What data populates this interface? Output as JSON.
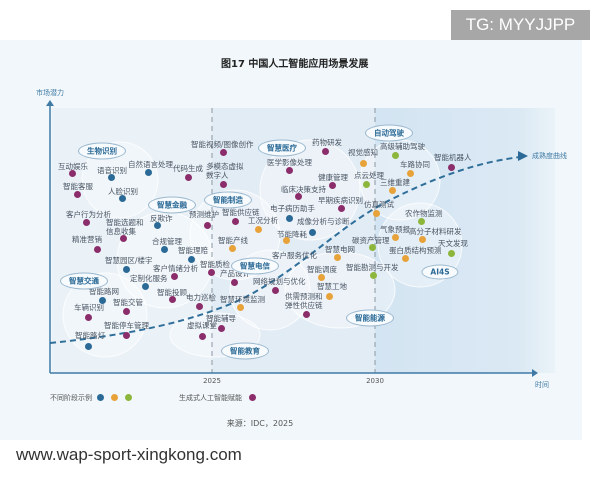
{
  "overlay_tag": "TG: MYYJJPP",
  "title": "图17 中国人工智能应用场景发展",
  "y_axis_label": "市场潜力",
  "x_axis_label": "时间",
  "x_ticks": [
    "2025",
    "2030"
  ],
  "curve_label": "成熟度曲线",
  "colors": {
    "blue": "#2b6a96",
    "orange": "#e8a23a",
    "green": "#8db63c",
    "purple": "#8b2d6a"
  },
  "clusters": [
    "生物识别",
    "智慧金融",
    "智能制造",
    "智慧医疗",
    "自动驾驶",
    "智慧交通",
    "智慧电信",
    "智能能源",
    "AI4S",
    "智能教育"
  ],
  "items": [
    {
      "label": "互动娱乐",
      "type": "purple"
    },
    {
      "label": "语音识别",
      "type": "blue"
    },
    {
      "label": "自然语言处理",
      "type": "blue"
    },
    {
      "label": "代码生成",
      "type": "purple"
    },
    {
      "label": "智能客服",
      "type": "purple"
    },
    {
      "label": "人脸识别",
      "type": "blue"
    },
    {
      "label": "智能视频/图像创作",
      "type": "purple"
    },
    {
      "label": "多模态虚拟 数字人",
      "type": "purple"
    },
    {
      "label": "药物研发",
      "type": "purple"
    },
    {
      "label": "医学影像处理",
      "type": "purple"
    },
    {
      "label": "视觉感知",
      "type": "orange"
    },
    {
      "label": "健康管理",
      "type": "purple"
    },
    {
      "label": "点云处理",
      "type": "green"
    },
    {
      "label": "临床决策支持",
      "type": "purple"
    },
    {
      "label": "早期疾病识别",
      "type": "purple"
    },
    {
      "label": "仿真测试",
      "type": "orange"
    },
    {
      "label": "智能供应链",
      "type": "purple"
    },
    {
      "label": "电子病历助手",
      "type": "blue"
    },
    {
      "label": "预测维护",
      "type": "purple"
    },
    {
      "label": "工况分析",
      "type": "orange"
    },
    {
      "label": "成像分析与诊断",
      "type": "blue"
    },
    {
      "label": "节能降耗",
      "type": "orange"
    },
    {
      "label": "智能产线",
      "type": "orange"
    },
    {
      "label": "碳资产管理",
      "type": "green"
    },
    {
      "label": "智慧电网",
      "type": "orange"
    },
    {
      "label": "客户服务优化",
      "type": "none"
    },
    {
      "label": "高级辅助驾驶",
      "type": "green"
    },
    {
      "label": "智能机器人",
      "type": "purple"
    },
    {
      "label": "车路协同",
      "type": "orange"
    },
    {
      "label": "三维重建",
      "type": "orange"
    },
    {
      "label": "农作物监测",
      "type": "green"
    },
    {
      "label": "气象预报",
      "type": "orange"
    },
    {
      "label": "高分子材料研发",
      "type": "orange"
    },
    {
      "label": "天文发现",
      "type": "green"
    },
    {
      "label": "蛋白质结构预测",
      "type": "orange"
    },
    {
      "label": "智能勘测与开发",
      "type": "green"
    },
    {
      "label": "客户行为分析",
      "type": "purple"
    },
    {
      "label": "智能选题和 信息收集",
      "type": "purple"
    },
    {
      "label": "反欺诈",
      "type": "blue"
    },
    {
      "label": "精准营销",
      "type": "purple"
    },
    {
      "label": "合规管理",
      "type": "blue"
    },
    {
      "label": "智能理赔",
      "type": "blue"
    },
    {
      "label": "智慧园区/楼宇",
      "type": "blue"
    },
    {
      "label": "客户情绪分析",
      "type": "purple"
    },
    {
      "label": "智能质检",
      "type": "purple"
    },
    {
      "label": "定制化服务",
      "type": "blue"
    },
    {
      "label": "智能路网",
      "type": "blue"
    },
    {
      "label": "智能投顾",
      "type": "purple"
    },
    {
      "label": "智能交管",
      "type": "purple"
    },
    {
      "label": "车辆识别",
      "type": "purple"
    },
    {
      "label": "电力巡检",
      "type": "purple"
    },
    {
      "label": "智能停车管理",
      "type": "purple"
    },
    {
      "label": "智能路灯",
      "type": "blue"
    },
    {
      "label": "虚拟课堂",
      "type": "purple"
    },
    {
      "label": "智能辅导",
      "type": "purple"
    },
    {
      "label": "产品设计",
      "type": "purple"
    },
    {
      "label": "网络规划与优化",
      "type": "purple"
    },
    {
      "label": "智慧环境监测",
      "type": "orange"
    },
    {
      "label": "智能调度",
      "type": "orange"
    },
    {
      "label": "智慧工地",
      "type": "orange"
    },
    {
      "label": "供需预测和 弹性供应链",
      "type": "purple"
    }
  ],
  "legend": {
    "stages_label": "不同阶段示例",
    "stage_colors": [
      "blue",
      "orange",
      "green"
    ],
    "genai_label": "生成式人工智能赋能",
    "genai_color": "purple"
  },
  "source": "来源：IDC，2025",
  "watermark": "www.wap-sport-xingkong.com"
}
